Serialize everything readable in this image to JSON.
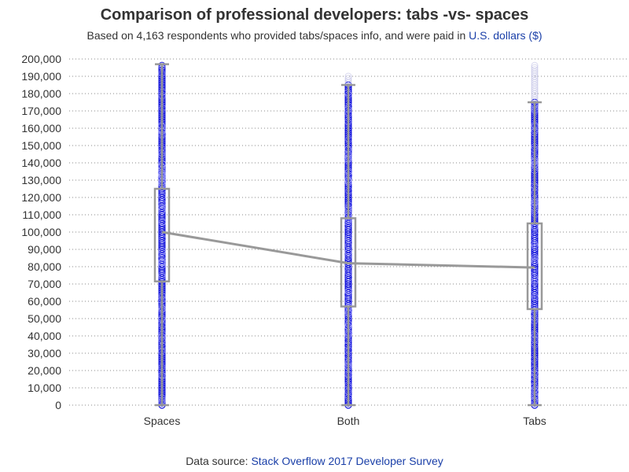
{
  "header": {
    "title": "Comparison of professional developers: tabs -vs- spaces",
    "subtitle_prefix": "Based on 4,163 respondents who provided tabs/spaces info, and were paid in ",
    "subtitle_link": "U.S. dollars ($)"
  },
  "footer": {
    "prefix": "Data source: ",
    "link": "Stack Overflow 2017 Developer Survey"
  },
  "colors": {
    "points": "#1a1adc",
    "box": "#999999",
    "grid": "#888888",
    "text": "#333333",
    "link": "#1a3fa8"
  },
  "chart_data": {
    "type": "box",
    "title": "Comparison of professional developers: tabs -vs- spaces",
    "subtitle": "Based on 4,163 respondents who provided tabs/spaces info, and were paid in U.S. dollars ($)",
    "xlabel": "",
    "ylabel": "",
    "ylim": [
      0,
      200000
    ],
    "yticks": [
      0,
      10000,
      20000,
      30000,
      40000,
      50000,
      60000,
      70000,
      80000,
      90000,
      100000,
      110000,
      120000,
      130000,
      140000,
      150000,
      160000,
      170000,
      180000,
      190000,
      200000
    ],
    "ytick_labels": [
      "0",
      "10,000",
      "20,000",
      "30,000",
      "40,000",
      "50,000",
      "60,000",
      "70,000",
      "80,000",
      "90,000",
      "100,000",
      "110,000",
      "120,000",
      "130,000",
      "140,000",
      "150,000",
      "160,000",
      "170,000",
      "180,000",
      "190,000",
      "200,000"
    ],
    "grid": "horizontal dotted",
    "categories": [
      "Spaces",
      "Both",
      "Tabs"
    ],
    "boxes": [
      {
        "category": "Spaces",
        "q1": 71500,
        "median": 100000,
        "q3": 125000,
        "whisker_low": 0,
        "whisker_high": 197000
      },
      {
        "category": "Both",
        "q1": 57000,
        "median": 82000,
        "q3": 108000,
        "whisker_low": 0,
        "whisker_high": 185000
      },
      {
        "category": "Tabs",
        "q1": 55500,
        "median": 79500,
        "q3": 105000,
        "whisker_low": 0,
        "whisker_high": 175000
      }
    ],
    "median_line": [
      100000,
      82000,
      79500
    ],
    "point_max": [
      197000,
      190000,
      197000
    ]
  }
}
